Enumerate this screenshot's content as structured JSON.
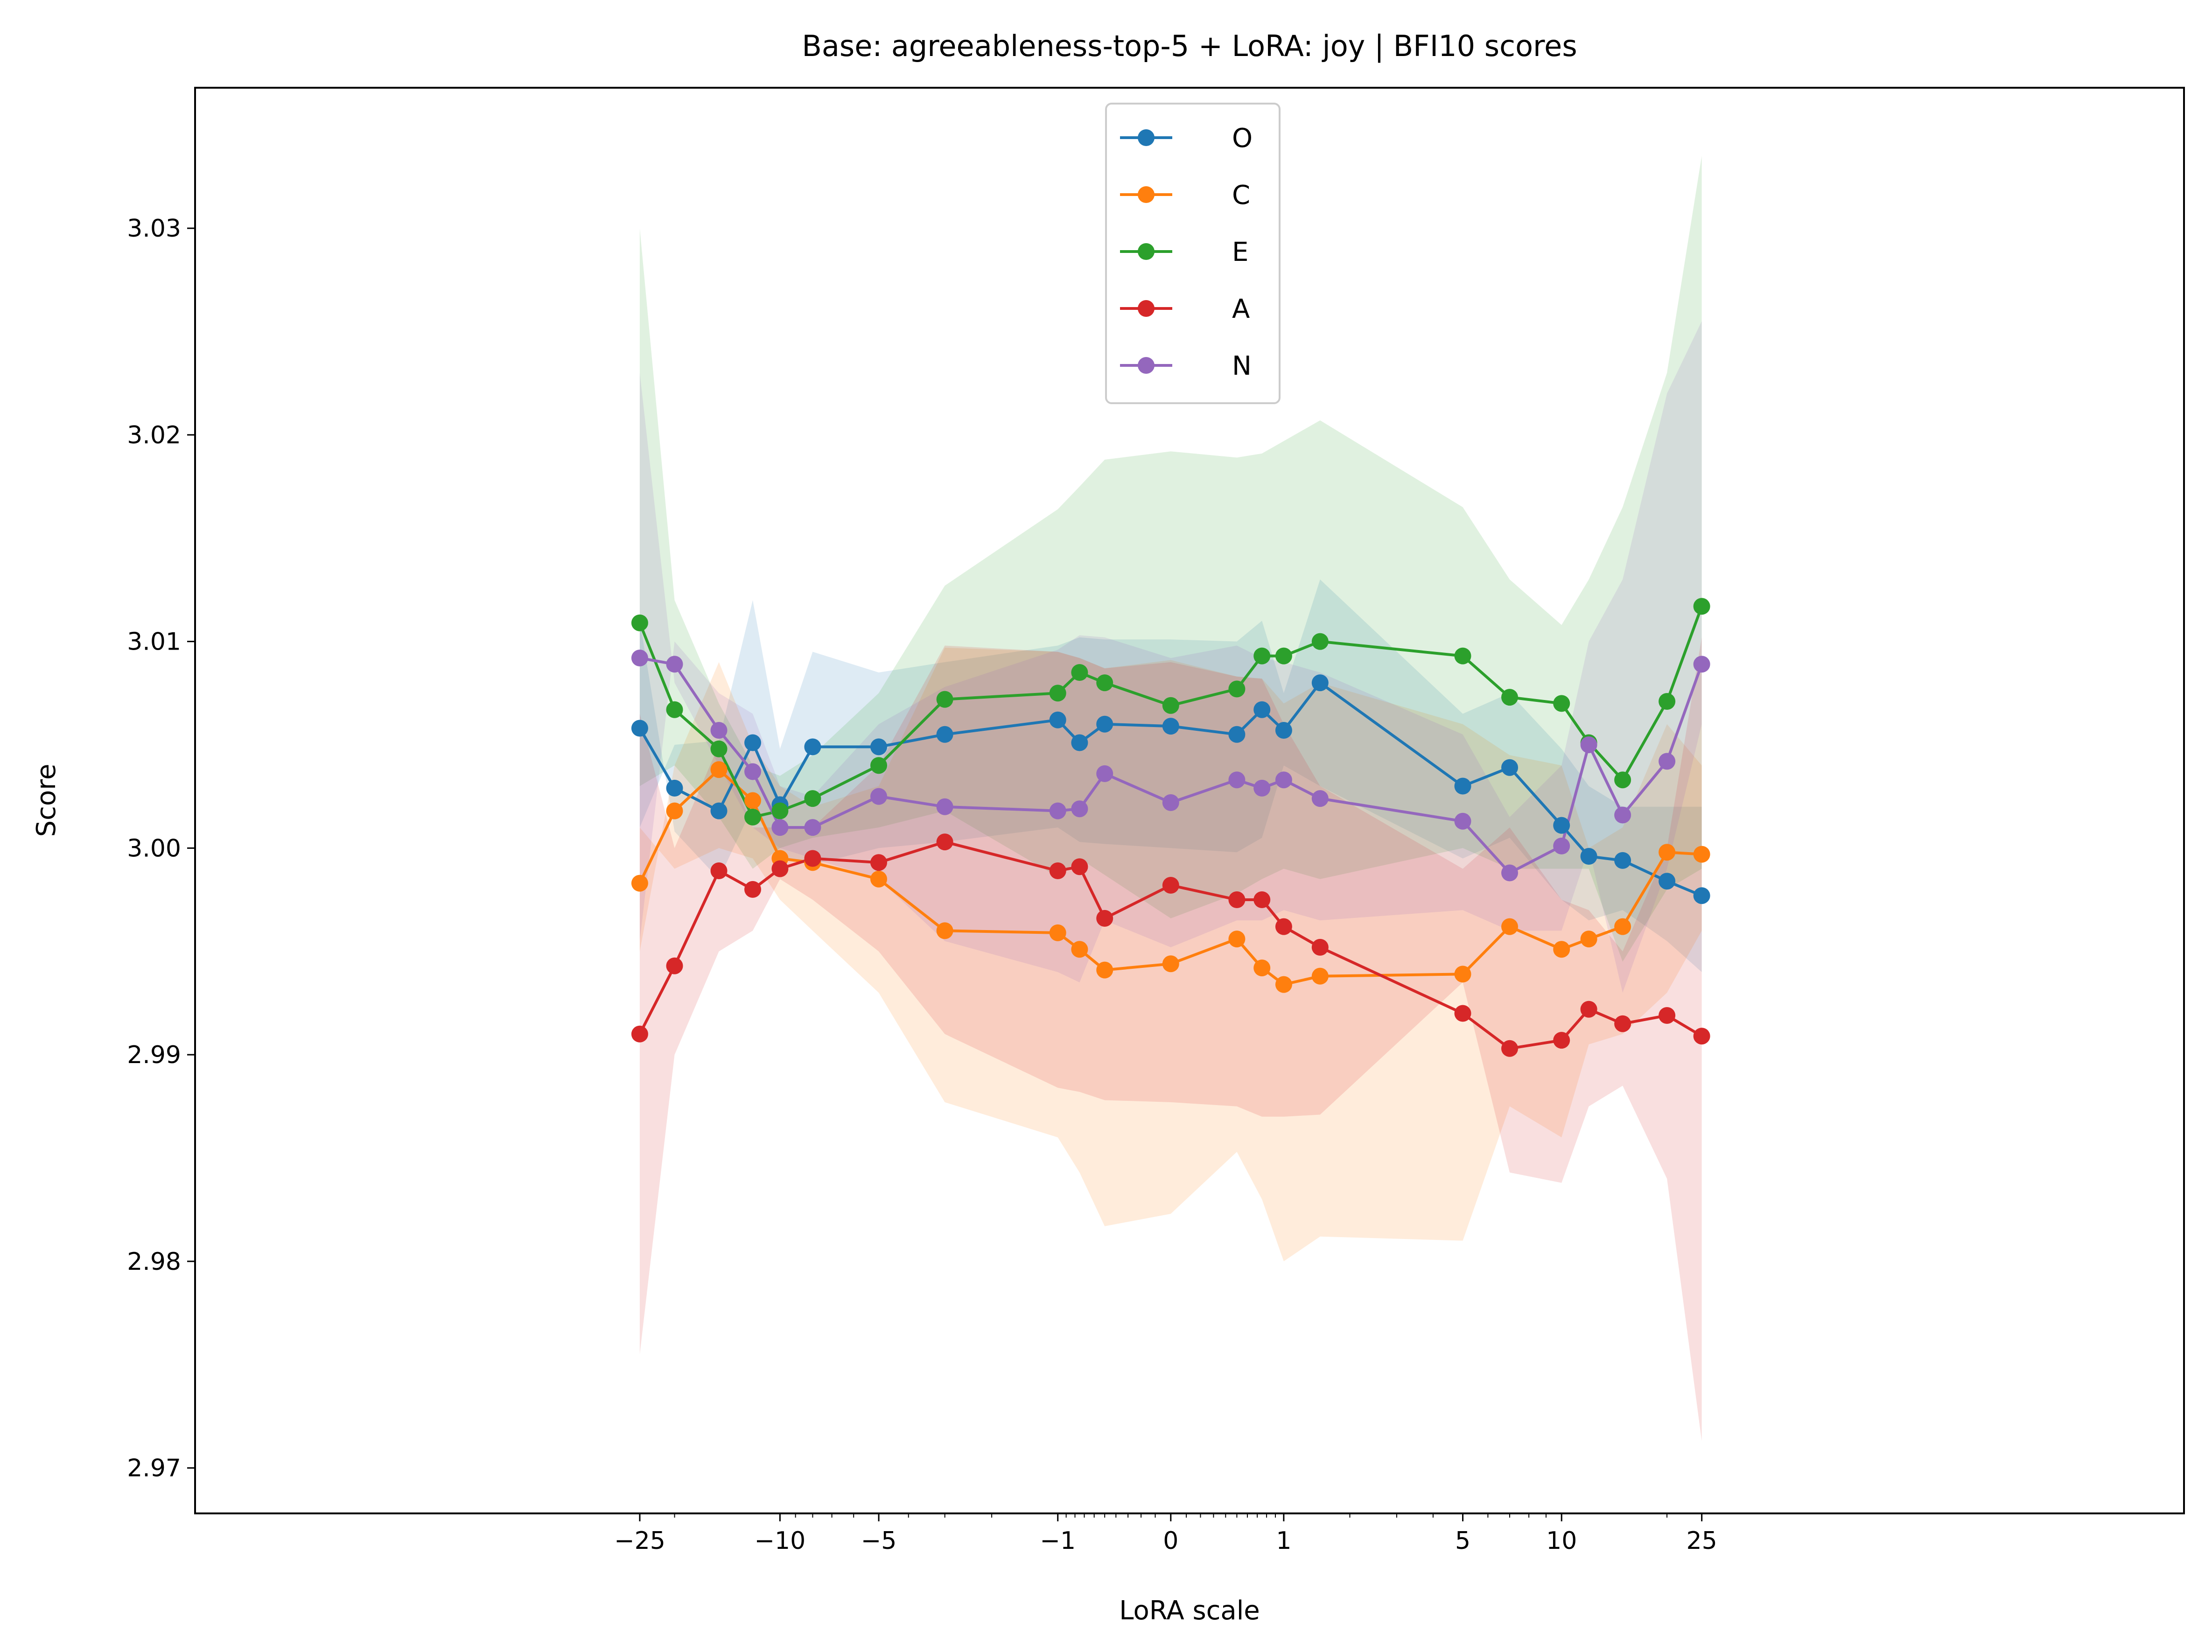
{
  "chart_data": {
    "type": "line",
    "title": "Base: agreeableness-top-5 + LoRA: joy | BFI10 scores",
    "xlabel": "LoRA scale",
    "ylabel": "Score",
    "x_scale": "symlog",
    "ylim": [
      2.9678,
      3.0368
    ],
    "x_ticks": [
      {
        "value": -25,
        "label": "−25"
      },
      {
        "value": -10,
        "label": "−10"
      },
      {
        "value": -5,
        "label": "−5"
      },
      {
        "value": -1,
        "label": "−1"
      },
      {
        "value": 0,
        "label": "0"
      },
      {
        "value": 1,
        "label": "1"
      },
      {
        "value": 5,
        "label": "5"
      },
      {
        "value": 10,
        "label": "10"
      },
      {
        "value": 25,
        "label": "25"
      }
    ],
    "y_ticks": [
      {
        "value": 2.97,
        "label": "2.97"
      },
      {
        "value": 2.98,
        "label": "2.98"
      },
      {
        "value": 2.99,
        "label": "2.99"
      },
      {
        "value": 3.0,
        "label": "3.00"
      },
      {
        "value": 3.01,
        "label": "3.01"
      },
      {
        "value": 3.02,
        "label": "3.02"
      },
      {
        "value": 3.03,
        "label": "3.03"
      }
    ],
    "grid": false,
    "legend_position": "upper-center",
    "x": [
      -25,
      -20,
      -15,
      -12,
      -10,
      -8,
      -5,
      -3,
      -1,
      -0.75,
      -0.5,
      0,
      0.5,
      0.75,
      1,
      1.5,
      5,
      7,
      10,
      12,
      15,
      20,
      25
    ],
    "series": [
      {
        "name": "O",
        "color": "#1f77b4",
        "values": [
          3.0058,
          3.0029,
          3.0018,
          3.0051,
          3.0021,
          3.0049,
          3.0049,
          3.0055,
          3.0062,
          3.0051,
          3.006,
          3.0059,
          3.0055,
          3.0067,
          3.0057,
          3.008,
          3.003,
          3.0039,
          3.0011,
          2.9996,
          2.9994,
          2.9984,
          2.9977
        ],
        "band_low": [
          3.011,
          3.0008,
          2.9985,
          3.002,
          2.9995,
          2.9992,
          3.0,
          3.0003,
          3.001,
          3.0003,
          3.0002,
          3.0,
          2.9998,
          3.0005,
          3.004,
          3.003,
          2.9995,
          3.0005,
          2.9975,
          2.9965,
          2.997,
          2.9955,
          2.994
        ],
        "band_high": [
          3.001,
          3.005,
          3.0052,
          3.012,
          3.0048,
          3.0095,
          3.0085,
          3.009,
          3.0098,
          3.0102,
          3.0101,
          3.0101,
          3.01,
          3.011,
          3.0075,
          3.013,
          3.0065,
          3.0075,
          3.0048,
          3.003,
          3.002,
          3.002,
          3.002
        ]
      },
      {
        "name": "C",
        "color": "#ff7f0e",
        "values": [
          2.9983,
          3.0018,
          3.0038,
          3.0023,
          2.9995,
          2.9993,
          2.9985,
          2.996,
          2.9959,
          2.9951,
          2.9941,
          2.9944,
          2.9956,
          2.9942,
          2.9934,
          2.9938,
          2.9939,
          2.9962,
          2.9951,
          2.9956,
          2.9962,
          2.9998,
          2.9997
        ],
        "band_low": [
          3.001,
          2.999,
          3.0,
          2.9995,
          2.9975,
          2.996,
          2.993,
          2.9877,
          2.986,
          2.9843,
          2.9817,
          2.9823,
          2.9853,
          2.983,
          2.98,
          2.9812,
          2.981,
          2.9875,
          2.986,
          2.9905,
          2.991,
          2.993,
          2.996
        ],
        "band_high": [
          2.995,
          3.004,
          3.009,
          3.005,
          3.003,
          3.002,
          3.003,
          3.0097,
          3.0095,
          3.0092,
          3.0087,
          3.0091,
          3.0083,
          3.0082,
          3.007,
          3.008,
          3.006,
          3.0045,
          3.004,
          3.0,
          3.001,
          3.006,
          3.004
        ]
      },
      {
        "name": "E",
        "color": "#2ca02c",
        "values": [
          3.0109,
          3.0067,
          3.0048,
          3.0015,
          3.0018,
          3.0024,
          3.004,
          3.0072,
          3.0075,
          3.0085,
          3.008,
          3.0069,
          3.0077,
          3.0093,
          3.0093,
          3.01,
          3.0093,
          3.0073,
          3.007,
          3.0051,
          3.0033,
          3.0071,
          3.0117
        ],
        "band_low": [
          3.003,
          3.004,
          3.0015,
          2.999,
          3.0,
          3.0005,
          3.001,
          3.0018,
          2.9986,
          2.9995,
          2.9987,
          2.9966,
          2.9978,
          2.9985,
          2.999,
          2.9985,
          3.0,
          2.999,
          2.999,
          2.999,
          2.9945,
          2.998,
          2.999
        ],
        "band_high": [
          3.03,
          3.012,
          3.007,
          3.004,
          3.0035,
          3.0045,
          3.0075,
          3.0127,
          3.0164,
          3.0175,
          3.0188,
          3.0192,
          3.0189,
          3.0191,
          3.0197,
          3.0207,
          3.0165,
          3.013,
          3.0108,
          3.013,
          3.0165,
          3.023,
          3.0335
        ]
      },
      {
        "name": "A",
        "color": "#d62728",
        "values": [
          2.991,
          2.9943,
          2.9989,
          2.998,
          2.999,
          2.9995,
          2.9993,
          3.0003,
          2.9989,
          2.9991,
          2.9966,
          2.9982,
          2.9975,
          2.9975,
          2.9962,
          2.9952,
          2.992,
          2.9903,
          2.9907,
          2.9922,
          2.9915,
          2.9919,
          2.9909
        ],
        "band_low": [
          2.9755,
          2.99,
          2.995,
          2.996,
          2.9985,
          2.9975,
          2.995,
          2.991,
          2.9884,
          2.9882,
          2.9878,
          2.9877,
          2.9875,
          2.987,
          2.987,
          2.9871,
          2.9935,
          2.9843,
          2.9838,
          2.9875,
          2.9885,
          2.984,
          2.9713
        ],
        "band_high": [
          3.0065,
          3.0,
          3.005,
          3.001,
          3.001,
          3.001,
          3.004,
          3.0098,
          3.0095,
          3.0092,
          3.0087,
          3.009,
          3.0083,
          3.0082,
          3.006,
          3.003,
          2.999,
          3.001,
          2.9975,
          2.997,
          2.995,
          3.0,
          3.0102
        ]
      },
      {
        "name": "N",
        "color": "#9467bd",
        "values": [
          3.0092,
          3.0089,
          3.0057,
          3.0037,
          3.001,
          3.001,
          3.0025,
          3.002,
          3.0018,
          3.0019,
          3.0036,
          3.0022,
          3.0033,
          3.0029,
          3.0033,
          3.0024,
          3.0013,
          2.9988,
          3.0001,
          3.005,
          3.0016,
          3.0042,
          3.0089
        ],
        "band_low": [
          3.023,
          3.008,
          3.004,
          3.001,
          3.0,
          2.9995,
          2.9985,
          2.9955,
          2.994,
          2.9935,
          2.9965,
          2.9952,
          2.9965,
          2.9965,
          2.997,
          2.9965,
          2.997,
          2.996,
          2.996,
          3.0,
          2.993,
          2.999,
          3.006
        ],
        "band_high": [
          2.9955,
          3.01,
          3.0075,
          3.0065,
          3.003,
          3.0025,
          3.006,
          3.0078,
          3.0096,
          3.0103,
          3.0102,
          3.0092,
          3.0098,
          3.0092,
          3.009,
          3.0085,
          3.0055,
          3.0015,
          3.004,
          3.01,
          3.013,
          3.022,
          3.0255
        ]
      }
    ]
  }
}
